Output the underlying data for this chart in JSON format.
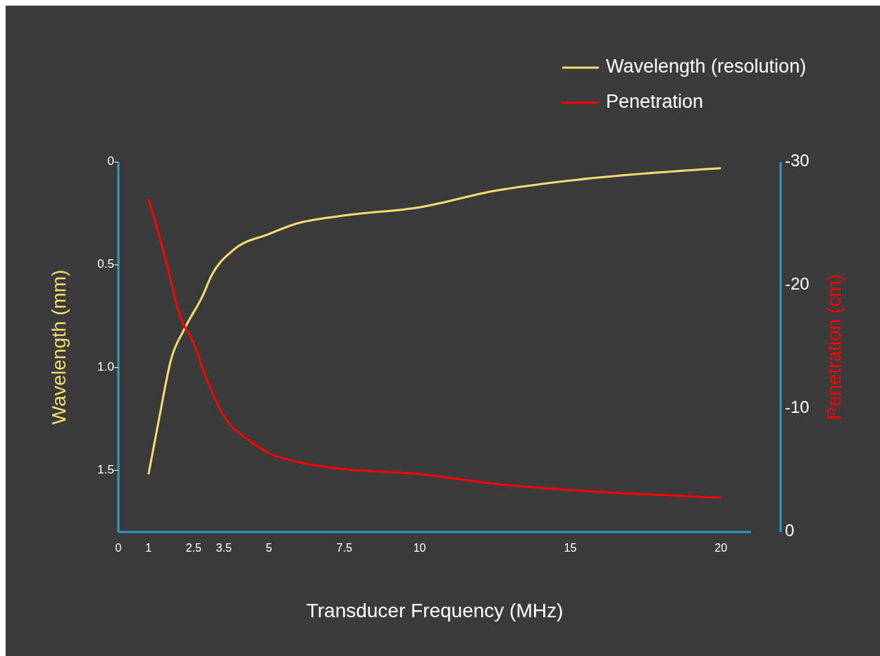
{
  "chart_data": {
    "type": "line",
    "xlabel": "Transducer Frequency (MHz)",
    "ylabel": "Wavelength (mm)",
    "y2label": "Penetration (cm)",
    "xlim": [
      0,
      21
    ],
    "xticks": [
      0,
      1,
      2.5,
      3.5,
      5,
      7.5,
      10,
      15,
      20
    ],
    "ylim": [
      1.8,
      0
    ],
    "yticks": [
      {
        "value": 0,
        "label": "0"
      },
      {
        "value": 0.5,
        "label": "0.5"
      },
      {
        "value": 1,
        "label": "1.0"
      },
      {
        "value": 1.5,
        "label": "1.5"
      }
    ],
    "y2lim": [
      0,
      -30
    ],
    "y2ticks": [
      -30,
      -20,
      -10,
      0
    ],
    "legend": "top right",
    "grid": false,
    "series": [
      {
        "name": "Wavelength (resolution)",
        "color": "#f7dc6f",
        "x": [
          1,
          1.375,
          1.75,
          2.2,
          2.8,
          3.1,
          3.8,
          5,
          5.9,
          7.5,
          10,
          12.5,
          15,
          20
        ],
        "values": [
          1.52,
          1.23,
          0.96,
          0.81,
          0.65,
          0.55,
          0.43,
          0.35,
          0.3,
          0.26,
          0.22,
          0.14,
          0.09,
          0.03
        ]
      },
      {
        "name": "Penetration",
        "color": "#ff0000",
        "axis": "y2",
        "x": [
          1,
          1.56,
          2.05,
          2.5,
          2.9,
          3.5,
          4.3,
          5,
          6.1,
          7.5,
          10,
          12.5,
          15,
          20
        ],
        "values": [
          -27,
          -22.2,
          -17.5,
          -15.3,
          -12.6,
          -9.4,
          -7.5,
          -6.4,
          -5.6,
          -5.1,
          -4.7,
          -3.9,
          -3.4,
          -2.8
        ]
      }
    ]
  }
}
